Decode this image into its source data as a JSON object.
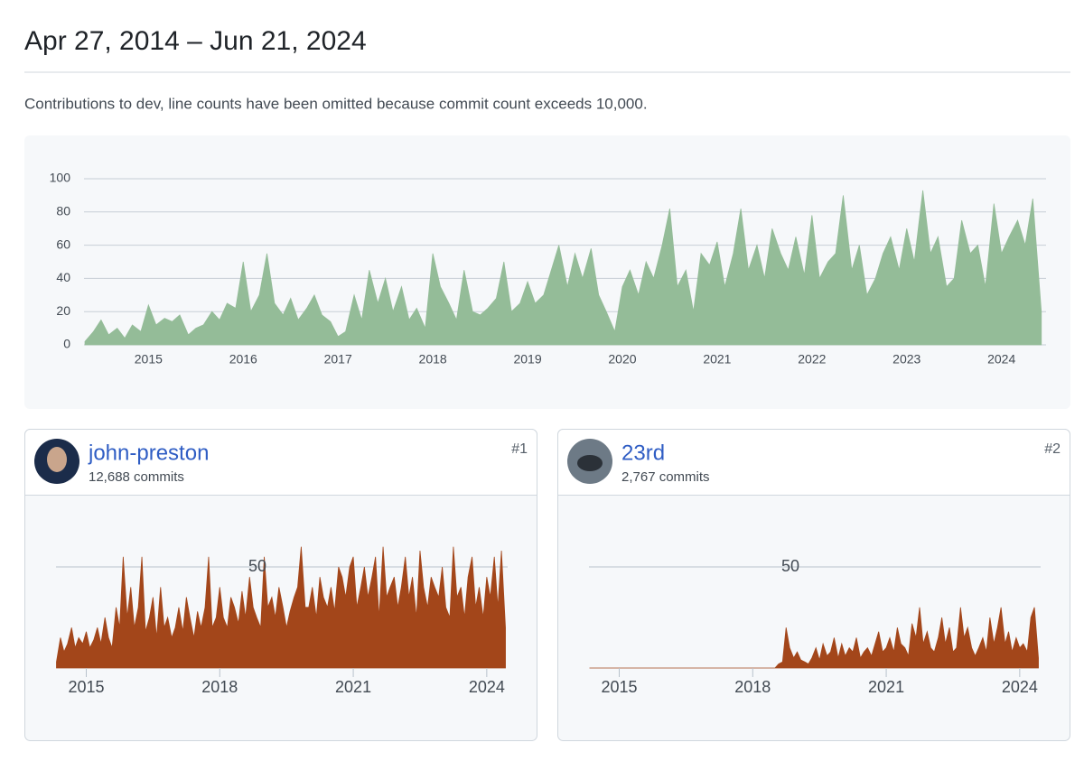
{
  "header": {
    "title": "Apr 27, 2014 – Jun 21, 2024",
    "description": "Contributions to dev, line counts have been omitted because commit count exceeds 10,000."
  },
  "contributors": [
    {
      "name": "john-preston",
      "commits": "12,688 commits",
      "rank": "#1"
    },
    {
      "name": "23rd",
      "commits": "2,767 commits",
      "rank": "#2"
    }
  ],
  "chart_data": [
    {
      "type": "area",
      "color": "#94bc98",
      "grid": true,
      "x": [
        2014.33,
        2014.42,
        2014.5,
        2014.58,
        2014.67,
        2014.75,
        2014.83,
        2014.92,
        2015,
        2015.08,
        2015.17,
        2015.25,
        2015.33,
        2015.42,
        2015.5,
        2015.58,
        2015.67,
        2015.75,
        2015.83,
        2015.92,
        2016,
        2016.08,
        2016.17,
        2016.25,
        2016.33,
        2016.42,
        2016.5,
        2016.58,
        2016.67,
        2016.75,
        2016.83,
        2016.92,
        2017,
        2017.08,
        2017.17,
        2017.25,
        2017.33,
        2017.42,
        2017.5,
        2017.58,
        2017.67,
        2017.75,
        2017.83,
        2017.92,
        2018,
        2018.08,
        2018.17,
        2018.25,
        2018.33,
        2018.42,
        2018.5,
        2018.58,
        2018.67,
        2018.75,
        2018.83,
        2018.92,
        2019,
        2019.08,
        2019.17,
        2019.25,
        2019.33,
        2019.42,
        2019.5,
        2019.58,
        2019.67,
        2019.75,
        2019.83,
        2019.92,
        2020,
        2020.08,
        2020.17,
        2020.25,
        2020.33,
        2020.42,
        2020.5,
        2020.58,
        2020.67,
        2020.75,
        2020.83,
        2020.92,
        2021,
        2021.08,
        2021.17,
        2021.25,
        2021.33,
        2021.42,
        2021.5,
        2021.58,
        2021.67,
        2021.75,
        2021.83,
        2021.92,
        2022,
        2022.08,
        2022.17,
        2022.25,
        2022.33,
        2022.42,
        2022.5,
        2022.58,
        2022.67,
        2022.75,
        2022.83,
        2022.92,
        2023,
        2023.08,
        2023.17,
        2023.25,
        2023.33,
        2023.42,
        2023.5,
        2023.58,
        2023.67,
        2023.75,
        2023.83,
        2023.92,
        2024,
        2024.08,
        2024.17,
        2024.25,
        2024.33,
        2024.42
      ],
      "values": [
        2,
        8,
        15,
        6,
        10,
        4,
        12,
        8,
        24,
        12,
        16,
        14,
        18,
        6,
        10,
        12,
        20,
        15,
        25,
        22,
        50,
        20,
        30,
        55,
        25,
        18,
        28,
        15,
        22,
        30,
        18,
        14,
        5,
        8,
        30,
        15,
        45,
        25,
        40,
        20,
        35,
        15,
        22,
        10,
        55,
        35,
        25,
        15,
        45,
        20,
        18,
        22,
        28,
        50,
        20,
        25,
        38,
        25,
        30,
        45,
        60,
        35,
        55,
        40,
        58,
        30,
        20,
        8,
        35,
        45,
        30,
        50,
        40,
        60,
        82,
        35,
        45,
        20,
        55,
        48,
        62,
        35,
        55,
        82,
        45,
        60,
        40,
        70,
        55,
        45,
        65,
        42,
        78,
        40,
        50,
        55,
        90,
        45,
        60,
        30,
        40,
        55,
        65,
        45,
        70,
        50,
        93,
        55,
        65,
        35,
        40,
        75,
        55,
        60,
        35,
        85,
        55,
        65,
        75,
        60,
        88,
        20
      ],
      "xlim": [
        2014.32,
        2024.47
      ],
      "xticks": [
        2015,
        2016,
        2017,
        2018,
        2019,
        2020,
        2021,
        2022,
        2023,
        2024
      ],
      "ylim": [
        0,
        100
      ],
      "yticks": [
        0,
        20,
        40,
        60,
        80,
        100
      ]
    },
    {
      "type": "area",
      "color": "#a3461a",
      "grid": true,
      "x": [
        2014.33,
        2014.42,
        2014.5,
        2014.58,
        2014.67,
        2014.75,
        2014.83,
        2014.92,
        2015,
        2015.08,
        2015.17,
        2015.25,
        2015.33,
        2015.42,
        2015.5,
        2015.58,
        2015.67,
        2015.75,
        2015.83,
        2015.92,
        2016,
        2016.08,
        2016.17,
        2016.25,
        2016.33,
        2016.42,
        2016.5,
        2016.58,
        2016.67,
        2016.75,
        2016.83,
        2016.92,
        2017,
        2017.08,
        2017.17,
        2017.25,
        2017.33,
        2017.42,
        2017.5,
        2017.58,
        2017.67,
        2017.75,
        2017.83,
        2017.92,
        2018,
        2018.08,
        2018.17,
        2018.25,
        2018.33,
        2018.42,
        2018.5,
        2018.58,
        2018.67,
        2018.75,
        2018.83,
        2018.92,
        2019,
        2019.08,
        2019.17,
        2019.25,
        2019.33,
        2019.42,
        2019.5,
        2019.58,
        2019.67,
        2019.75,
        2019.83,
        2019.92,
        2020,
        2020.08,
        2020.17,
        2020.25,
        2020.33,
        2020.42,
        2020.5,
        2020.58,
        2020.67,
        2020.75,
        2020.83,
        2020.92,
        2021,
        2021.08,
        2021.17,
        2021.25,
        2021.33,
        2021.42,
        2021.5,
        2021.58,
        2021.67,
        2021.75,
        2021.83,
        2021.92,
        2022,
        2022.08,
        2022.17,
        2022.25,
        2022.33,
        2022.42,
        2022.5,
        2022.58,
        2022.67,
        2022.75,
        2022.83,
        2022.92,
        2023,
        2023.08,
        2023.17,
        2023.25,
        2023.33,
        2023.42,
        2023.5,
        2023.58,
        2023.67,
        2023.75,
        2023.83,
        2023.92,
        2024,
        2024.08,
        2024.17,
        2024.25,
        2024.33,
        2024.42
      ],
      "values": [
        3,
        15,
        8,
        12,
        20,
        10,
        15,
        12,
        18,
        10,
        14,
        20,
        12,
        25,
        15,
        10,
        30,
        20,
        55,
        25,
        40,
        20,
        30,
        55,
        18,
        25,
        35,
        15,
        40,
        20,
        25,
        15,
        20,
        30,
        18,
        35,
        25,
        15,
        28,
        20,
        30,
        55,
        20,
        25,
        40,
        25,
        20,
        35,
        30,
        22,
        38,
        25,
        45,
        30,
        25,
        20,
        55,
        30,
        35,
        25,
        40,
        30,
        20,
        28,
        35,
        40,
        60,
        30,
        30,
        40,
        25,
        45,
        35,
        30,
        40,
        28,
        50,
        45,
        35,
        50,
        55,
        30,
        40,
        50,
        35,
        45,
        55,
        25,
        60,
        35,
        40,
        45,
        30,
        40,
        55,
        35,
        45,
        25,
        58,
        40,
        30,
        45,
        40,
        35,
        50,
        30,
        25,
        60,
        35,
        40,
        25,
        45,
        55,
        30,
        40,
        25,
        45,
        35,
        55,
        30,
        58,
        20
      ],
      "xlim": [
        2014.32,
        2024.47
      ],
      "xticks": [
        2015,
        2018,
        2021,
        2024
      ],
      "ylim": [
        0,
        65
      ],
      "yticks": [
        50
      ]
    },
    {
      "type": "area",
      "color": "#a3461a",
      "grid": true,
      "x": [
        2014.33,
        2014.42,
        2014.5,
        2014.58,
        2014.67,
        2014.75,
        2014.83,
        2014.92,
        2015,
        2015.08,
        2015.17,
        2015.25,
        2015.33,
        2015.42,
        2015.5,
        2015.58,
        2015.67,
        2015.75,
        2015.83,
        2015.92,
        2016,
        2016.08,
        2016.17,
        2016.25,
        2016.33,
        2016.42,
        2016.5,
        2016.58,
        2016.67,
        2016.75,
        2016.83,
        2016.92,
        2017,
        2017.08,
        2017.17,
        2017.25,
        2017.33,
        2017.42,
        2017.5,
        2017.58,
        2017.67,
        2017.75,
        2017.83,
        2017.92,
        2018,
        2018.08,
        2018.17,
        2018.25,
        2018.33,
        2018.42,
        2018.5,
        2018.58,
        2018.67,
        2018.75,
        2018.83,
        2018.92,
        2019,
        2019.08,
        2019.17,
        2019.25,
        2019.33,
        2019.42,
        2019.5,
        2019.58,
        2019.67,
        2019.75,
        2019.83,
        2019.92,
        2020,
        2020.08,
        2020.17,
        2020.25,
        2020.33,
        2020.42,
        2020.5,
        2020.58,
        2020.67,
        2020.75,
        2020.83,
        2020.92,
        2021,
        2021.08,
        2021.17,
        2021.25,
        2021.33,
        2021.42,
        2021.5,
        2021.58,
        2021.67,
        2021.75,
        2021.83,
        2021.92,
        2022,
        2022.08,
        2022.17,
        2022.25,
        2022.33,
        2022.42,
        2022.5,
        2022.58,
        2022.67,
        2022.75,
        2022.83,
        2022.92,
        2023,
        2023.08,
        2023.17,
        2023.25,
        2023.33,
        2023.42,
        2023.5,
        2023.58,
        2023.67,
        2023.75,
        2023.83,
        2023.92,
        2024,
        2024.08,
        2024.17,
        2024.25,
        2024.33,
        2024.42
      ],
      "values": [
        0,
        0,
        0,
        0,
        0,
        0,
        0,
        0,
        0,
        0,
        0,
        0,
        0,
        0,
        0,
        0,
        0,
        0,
        0,
        0,
        0,
        0,
        0,
        0,
        0,
        0,
        0,
        0,
        0,
        0,
        0,
        0,
        0,
        0,
        0,
        0,
        0,
        0,
        0,
        0,
        0,
        0,
        0,
        0,
        0,
        0,
        0,
        0,
        0,
        0,
        0,
        2,
        3,
        20,
        10,
        5,
        8,
        4,
        3,
        2,
        5,
        10,
        4,
        12,
        6,
        8,
        15,
        5,
        12,
        6,
        10,
        8,
        15,
        5,
        8,
        10,
        6,
        12,
        18,
        8,
        10,
        15,
        8,
        20,
        12,
        10,
        6,
        22,
        15,
        30,
        12,
        18,
        10,
        8,
        15,
        25,
        12,
        20,
        8,
        10,
        30,
        15,
        20,
        10,
        6,
        10,
        15,
        8,
        25,
        12,
        20,
        30,
        12,
        18,
        8,
        15,
        10,
        12,
        8,
        25,
        30,
        5
      ],
      "xlim": [
        2014.32,
        2024.47
      ],
      "xticks": [
        2015,
        2018,
        2021,
        2024
      ],
      "ylim": [
        0,
        65
      ],
      "yticks": [
        50
      ]
    }
  ]
}
